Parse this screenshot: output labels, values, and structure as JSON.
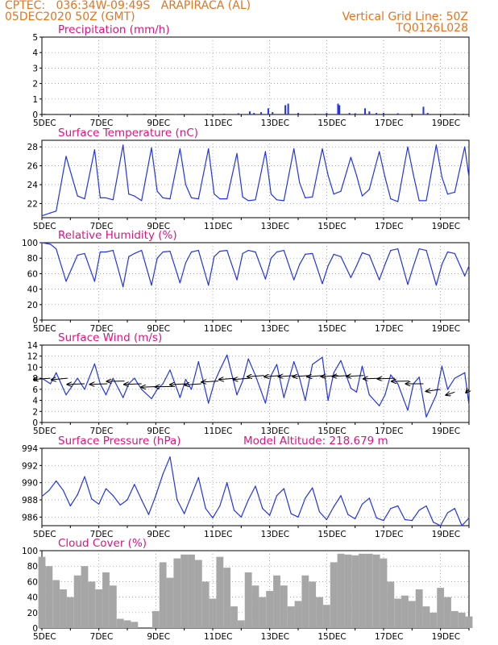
{
  "header": {
    "line1": "CPTEC:   036:34W-09:49S   ARAPIRACA (AL)",
    "line2": "05DEC2020 50Z (GMT)",
    "right1": "Vertical Grid Line: 50Z",
    "right2": "TQ0126L028"
  },
  "colors": {
    "line": "#2233ee",
    "cloud": "#a6a6a6",
    "title": "#e0127e",
    "header": "#e8731a"
  },
  "x_ticks": [
    "5DEC",
    "7DEC",
    "9DEC",
    "11DEC",
    "13DEC",
    "15DEC",
    "17DEC",
    "19DEC"
  ],
  "x_subticks_visible": [
    true,
    true,
    true,
    true,
    true,
    false
  ],
  "chart_data": [
    {
      "id": "precip",
      "type": "bar",
      "title": "Precipitation (mm/h)",
      "ylim": [
        0,
        5
      ],
      "yticks": [
        0,
        1,
        2,
        3,
        4,
        5
      ],
      "grid": true,
      "xlim_days": [
        5,
        20
      ],
      "series": [
        {
          "x_days": [
            5.1,
            5.5,
            6.0,
            6.4,
            7.0,
            7.5,
            8.1,
            8.6,
            9.2,
            9.7,
            10.3,
            10.8,
            11.4,
            11.9,
            12.3,
            12.45,
            12.7,
            12.95,
            13.1,
            13.55,
            13.65,
            14.0,
            14.6,
            15.0,
            15.4,
            15.45,
            15.8,
            16.0,
            16.35,
            16.5,
            16.75,
            17.0,
            17.5,
            18.0,
            18.4,
            18.55,
            19.0,
            19.5,
            19.8
          ],
          "values": [
            0.05,
            0.04,
            0.03,
            0.04,
            0.03,
            0.04,
            0.03,
            0.05,
            0.04,
            0.03,
            0.04,
            0.05,
            0.05,
            0.08,
            0.2,
            0.1,
            0.15,
            0.4,
            0.15,
            0.6,
            0.7,
            0.1,
            0.05,
            0.1,
            0.7,
            0.6,
            0.1,
            0.08,
            0.4,
            0.2,
            0.1,
            0.1,
            0.08,
            0.06,
            0.5,
            0.1,
            0.05,
            0.06,
            0.05
          ]
        }
      ]
    },
    {
      "id": "temp",
      "type": "line",
      "title": "Surface Temperature (nC)",
      "ylim": [
        20.5,
        28.7
      ],
      "yticks": [
        22,
        24,
        26,
        28
      ],
      "grid": true,
      "series": [
        {
          "x_days": [
            5,
            5.3,
            5.5,
            5.85,
            6.25,
            6.5,
            6.85,
            7.05,
            7.25,
            7.5,
            7.85,
            8.05,
            8.25,
            8.5,
            8.85,
            9.05,
            9.25,
            9.5,
            9.85,
            10.05,
            10.25,
            10.5,
            10.85,
            11.05,
            11.25,
            11.5,
            11.85,
            12.05,
            12.25,
            12.5,
            12.85,
            13.05,
            13.25,
            13.5,
            13.85,
            14.05,
            14.25,
            14.5,
            14.85,
            15.05,
            15.25,
            15.5,
            15.85,
            16.05,
            16.25,
            16.5,
            16.85,
            17.05,
            17.25,
            17.5,
            17.85,
            18.05,
            18.25,
            18.5,
            18.85,
            19.05,
            19.25,
            19.5,
            19.85,
            20
          ],
          "values": [
            20.7,
            21.0,
            21.2,
            27.0,
            22.8,
            22.5,
            27.7,
            22.6,
            22.6,
            22.4,
            28.2,
            23.0,
            22.8,
            22.3,
            27.9,
            23.3,
            22.6,
            22.5,
            27.8,
            24.0,
            22.6,
            22.5,
            27.8,
            23.0,
            22.5,
            22.5,
            27.3,
            22.7,
            22.3,
            22.4,
            27.5,
            23.0,
            22.4,
            22.3,
            27.8,
            24.2,
            22.6,
            22.7,
            27.8,
            25.0,
            23.0,
            23.3,
            26.9,
            25.0,
            22.8,
            23.5,
            27.5,
            24.8,
            22.5,
            22.2,
            28.0,
            25.0,
            22.3,
            22.3,
            28.2,
            24.8,
            23.0,
            23.2,
            28.0,
            24.8
          ]
        }
      ]
    },
    {
      "id": "rh",
      "type": "line",
      "title": "Relative Humidity (%)",
      "ylim": [
        0,
        100
      ],
      "yticks": [
        0,
        20,
        40,
        60,
        80,
        100
      ],
      "grid": true,
      "series": [
        {
          "x_days": [
            5,
            5.3,
            5.5,
            5.85,
            6.25,
            6.5,
            6.85,
            7.05,
            7.25,
            7.5,
            7.85,
            8.05,
            8.25,
            8.5,
            8.85,
            9.05,
            9.25,
            9.5,
            9.85,
            10.05,
            10.25,
            10.5,
            10.85,
            11.05,
            11.25,
            11.5,
            11.85,
            12.05,
            12.25,
            12.5,
            12.85,
            13.05,
            13.25,
            13.5,
            13.85,
            14.05,
            14.25,
            14.5,
            14.85,
            15.05,
            15.25,
            15.5,
            15.85,
            16.05,
            16.25,
            16.5,
            16.85,
            17.05,
            17.25,
            17.5,
            17.85,
            18.05,
            18.25,
            18.5,
            18.85,
            19.05,
            19.25,
            19.5,
            19.85,
            20
          ],
          "values": [
            100,
            98,
            92,
            50,
            84,
            86,
            50,
            88,
            88,
            90,
            43,
            82,
            86,
            90,
            45,
            80,
            88,
            89,
            48,
            74,
            88,
            90,
            45,
            82,
            89,
            90,
            52,
            86,
            90,
            88,
            53,
            80,
            88,
            90,
            52,
            72,
            85,
            86,
            47,
            70,
            85,
            82,
            55,
            70,
            87,
            84,
            52,
            72,
            90,
            92,
            46,
            70,
            92,
            90,
            45,
            72,
            88,
            86,
            57,
            70
          ]
        }
      ]
    },
    {
      "id": "wind",
      "type": "line",
      "title": "Surface Wind (m/s)",
      "ylim": [
        0,
        14
      ],
      "yticks": [
        0,
        2,
        4,
        6,
        8,
        10,
        12,
        14
      ],
      "grid": true,
      "series": [
        {
          "x_days": [
            5,
            5.3,
            5.5,
            5.85,
            6.25,
            6.5,
            6.85,
            7.05,
            7.25,
            7.5,
            7.85,
            8.05,
            8.25,
            8.5,
            8.85,
            9.05,
            9.25,
            9.5,
            9.85,
            10.05,
            10.25,
            10.5,
            10.85,
            11.05,
            11.25,
            11.5,
            11.85,
            12.05,
            12.25,
            12.5,
            12.85,
            13.05,
            13.25,
            13.5,
            13.85,
            14.05,
            14.25,
            14.5,
            14.85,
            15.05,
            15.25,
            15.5,
            15.85,
            16.05,
            16.25,
            16.5,
            16.85,
            17.05,
            17.25,
            17.5,
            17.85,
            18.05,
            18.25,
            18.5,
            18.85,
            19.05,
            19.25,
            19.5,
            19.85,
            20
          ],
          "values": [
            8,
            7,
            9,
            5,
            8,
            6,
            10.6,
            7,
            5,
            8,
            4.5,
            7,
            8,
            6,
            4.3,
            6,
            7,
            9.5,
            4.5,
            7.8,
            6,
            11.0,
            3.5,
            7.2,
            9.5,
            12.2,
            5,
            7.5,
            11.5,
            8.5,
            3.5,
            8.5,
            10.5,
            4.5,
            11,
            8,
            4,
            10.5,
            11.8,
            4,
            9,
            11.2,
            6.2,
            5.5,
            10.2,
            5,
            3,
            5,
            8.6,
            7,
            2.2,
            7,
            8.2,
            1,
            5,
            10.2,
            6,
            8,
            9,
            3.2
          ]
        }
      ],
      "vectors": [
        {
          "x_days": [
            5.3,
            5.9,
            6.5,
            7.3,
            7.9,
            8.5,
            9.1,
            9.6,
            10.1,
            10.6,
            11.2,
            11.8,
            12.3,
            12.8,
            13.4,
            13.9,
            14.4,
            14.9,
            15.4,
            15.8,
            16.3,
            16.9,
            17.4,
            17.9,
            18.4,
            19.0,
            19.5,
            20.0
          ],
          "speed": [
            8,
            8,
            7,
            7,
            7.5,
            7,
            6.5,
            6.5,
            7,
            7,
            7.5,
            8,
            8,
            8.5,
            8.5,
            8.5,
            8.5,
            8.5,
            8.5,
            8.5,
            8.5,
            8,
            8,
            7.5,
            7,
            6,
            5.5,
            6
          ],
          "direction_deg": [
            110,
            115,
            100,
            100,
            95,
            100,
            100,
            95,
            105,
            110,
            108,
            112,
            112,
            110,
            110,
            108,
            110,
            110,
            108,
            105,
            105,
            100,
            100,
            95,
            90,
            125,
            150,
            170
          ]
        }
      ]
    },
    {
      "id": "pressure",
      "type": "line",
      "title": "Surface Pressure (hPa)",
      "annotation": "Model Altitude: 218.679  m",
      "ylim": [
        985,
        994
      ],
      "yticks": [
        986,
        988,
        990,
        992,
        994
      ],
      "grid": true,
      "series": [
        {
          "x_days": [
            5,
            5.25,
            5.5,
            5.75,
            6.0,
            6.25,
            6.5,
            6.75,
            7.0,
            7.25,
            7.5,
            7.75,
            8.0,
            8.25,
            8.5,
            8.75,
            9.0,
            9.25,
            9.5,
            9.75,
            10.0,
            10.25,
            10.5,
            10.75,
            11.0,
            11.25,
            11.5,
            11.75,
            12.0,
            12.25,
            12.5,
            12.75,
            13.0,
            13.25,
            13.5,
            13.75,
            14.0,
            14.25,
            14.5,
            14.75,
            15.0,
            15.25,
            15.5,
            15.75,
            16.0,
            16.25,
            16.5,
            16.75,
            17.0,
            17.25,
            17.5,
            17.75,
            18.0,
            18.25,
            18.5,
            18.75,
            19.0,
            19.25,
            19.5,
            19.75,
            20
          ],
          "values": [
            988.4,
            989.1,
            990.2,
            989.1,
            987.3,
            988.6,
            990.7,
            988.1,
            987.5,
            989.3,
            988.5,
            987.4,
            988.0,
            989.8,
            988.0,
            986.3,
            988.5,
            991.0,
            993.0,
            988.0,
            986.4,
            988.5,
            990.6,
            987.0,
            985.9,
            987.3,
            990.0,
            986.8,
            986.0,
            988.0,
            989.6,
            987.0,
            986.2,
            988.5,
            989.3,
            986.4,
            986.0,
            988.2,
            989.4,
            986.6,
            985.7,
            987.2,
            988.5,
            986.3,
            985.8,
            987.5,
            988.2,
            985.9,
            985.6,
            987.0,
            987.3,
            985.7,
            985.6,
            986.8,
            987.3,
            985.4,
            985.0,
            986.5,
            987.0,
            985.0,
            985.9
          ]
        }
      ]
    },
    {
      "id": "cloud",
      "type": "bar",
      "title": "Cloud Cover (%)",
      "ylim": [
        0,
        100
      ],
      "yticks": [
        0,
        20,
        40,
        60,
        80,
        100
      ],
      "grid": true,
      "series": [
        {
          "x_days": [
            5.0,
            5.25,
            5.5,
            5.75,
            6.0,
            6.25,
            6.5,
            6.75,
            7.0,
            7.25,
            7.5,
            7.75,
            8.0,
            8.25,
            8.5,
            8.75,
            9.0,
            9.25,
            9.5,
            9.75,
            10.0,
            10.25,
            10.5,
            10.75,
            11.0,
            11.25,
            11.5,
            11.75,
            12.0,
            12.25,
            12.5,
            12.75,
            13.0,
            13.25,
            13.5,
            13.75,
            14.0,
            14.25,
            14.5,
            14.75,
            15.0,
            15.25,
            15.5,
            15.75,
            16.0,
            16.25,
            16.5,
            16.75,
            17.0,
            17.25,
            17.5,
            17.75,
            18.0,
            18.25,
            18.5,
            18.75,
            19.0,
            19.25,
            19.5,
            19.75,
            20.0
          ],
          "values": [
            92,
            80,
            62,
            50,
            40,
            68,
            80,
            60,
            50,
            72,
            55,
            12,
            10,
            8,
            0,
            0,
            22,
            85,
            65,
            90,
            95,
            95,
            88,
            60,
            38,
            92,
            78,
            28,
            10,
            72,
            55,
            40,
            48,
            68,
            55,
            28,
            35,
            68,
            60,
            40,
            30,
            85,
            96,
            95,
            94,
            96,
            96,
            95,
            90,
            60,
            38,
            42,
            35,
            50,
            28,
            20,
            52,
            40,
            22,
            20,
            15
          ]
        }
      ]
    }
  ]
}
